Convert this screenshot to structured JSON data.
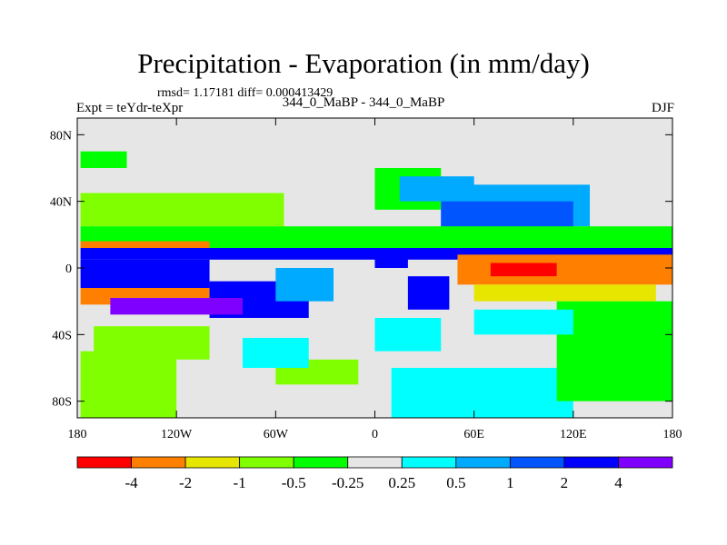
{
  "title": "Precipitation - Evaporation (in mm/day)",
  "stats": "rmsd= 1.17181 diff= 0.000413429",
  "expt_label": "Expt = teYdr-teXpr",
  "subtitle": "344_0_MaBP - 344_0_MaBP",
  "season": "DJF",
  "chart_data": {
    "type": "heatmap",
    "title": "Precipitation - Evaporation (in mm/day)",
    "x_ticks": [
      "180",
      "120W",
      "60W",
      "0",
      "60E",
      "120E",
      "180"
    ],
    "x_tick_values": [
      -180,
      -120,
      -60,
      0,
      60,
      120,
      180
    ],
    "y_ticks": [
      "80N",
      "40N",
      "0",
      "40S",
      "80S"
    ],
    "y_tick_values": [
      80,
      40,
      0,
      -40,
      -80
    ],
    "xlim": [
      -180,
      180
    ],
    "ylim": [
      -90,
      90
    ],
    "colorbar": {
      "labels": [
        "-4",
        "-2",
        "-1",
        "-0.5",
        "-0.25",
        "0.25",
        "0.5",
        "1",
        "2",
        "4"
      ],
      "colors": [
        "#ff0000",
        "#ff8000",
        "#e6e600",
        "#80ff00",
        "#00ff00",
        "#e6e6e6",
        "#00ffff",
        "#00aaff",
        "#0055ff",
        "#0000ff",
        "#8000ff"
      ]
    },
    "regions": [
      {
        "lon": [
          -180,
          180
        ],
        "lat": [
          -90,
          90
        ],
        "level": 5
      },
      {
        "lon": [
          -178,
          -120
        ],
        "lat": [
          -90,
          -50
        ],
        "level": 3
      },
      {
        "lon": [
          -170,
          -100
        ],
        "lat": [
          -55,
          -35
        ],
        "level": 3
      },
      {
        "lon": [
          -178,
          -55
        ],
        "lat": [
          25,
          45
        ],
        "level": 3
      },
      {
        "lon": [
          -178,
          -150
        ],
        "lat": [
          60,
          70
        ],
        "level": 4
      },
      {
        "lon": [
          -60,
          -10
        ],
        "lat": [
          -70,
          -55
        ],
        "level": 3
      },
      {
        "lon": [
          0,
          40
        ],
        "lat": [
          35,
          60
        ],
        "level": 4
      },
      {
        "lon": [
          10,
          120
        ],
        "lat": [
          -90,
          -60
        ],
        "level": 6
      },
      {
        "lon": [
          110,
          180
        ],
        "lat": [
          -80,
          -20
        ],
        "level": 4
      },
      {
        "lon": [
          15,
          60
        ],
        "lat": [
          40,
          55
        ],
        "level": 7
      },
      {
        "lon": [
          40,
          130
        ],
        "lat": [
          25,
          50
        ],
        "level": 7
      },
      {
        "lon": [
          40,
          120
        ],
        "lat": [
          15,
          40
        ],
        "level": 8
      },
      {
        "lon": [
          -178,
          180
        ],
        "lat": [
          12,
          25
        ],
        "level": 4
      },
      {
        "lon": [
          -178,
          -100
        ],
        "lat": [
          12,
          16
        ],
        "level": 1
      },
      {
        "lon": [
          -178,
          180
        ],
        "lat": [
          5,
          12
        ],
        "level": 9
      },
      {
        "lon": [
          -178,
          -100
        ],
        "lat": [
          -12,
          5
        ],
        "level": 9
      },
      {
        "lon": [
          -178,
          -100
        ],
        "lat": [
          -22,
          -12
        ],
        "level": 1
      },
      {
        "lon": [
          -100,
          -40
        ],
        "lat": [
          -30,
          -8
        ],
        "level": 9
      },
      {
        "lon": [
          -160,
          -80
        ],
        "lat": [
          -28,
          -18
        ],
        "level": 10
      },
      {
        "lon": [
          -60,
          -25
        ],
        "lat": [
          -20,
          0
        ],
        "level": 7
      },
      {
        "lon": [
          50,
          180
        ],
        "lat": [
          -10,
          8
        ],
        "level": 1
      },
      {
        "lon": [
          70,
          110
        ],
        "lat": [
          -5,
          3
        ],
        "level": 0
      },
      {
        "lon": [
          60,
          170
        ],
        "lat": [
          -20,
          -10
        ],
        "level": 2
      },
      {
        "lon": [
          20,
          45
        ],
        "lat": [
          -25,
          -5
        ],
        "level": 9
      },
      {
        "lon": [
          0,
          20
        ],
        "lat": [
          0,
          10
        ],
        "level": 9
      },
      {
        "lon": [
          0,
          40
        ],
        "lat": [
          -50,
          -30
        ],
        "level": 6
      },
      {
        "lon": [
          -80,
          -40
        ],
        "lat": [
          -60,
          -42
        ],
        "level": 6
      },
      {
        "lon": [
          60,
          120
        ],
        "lat": [
          -40,
          -25
        ],
        "level": 6
      }
    ]
  }
}
